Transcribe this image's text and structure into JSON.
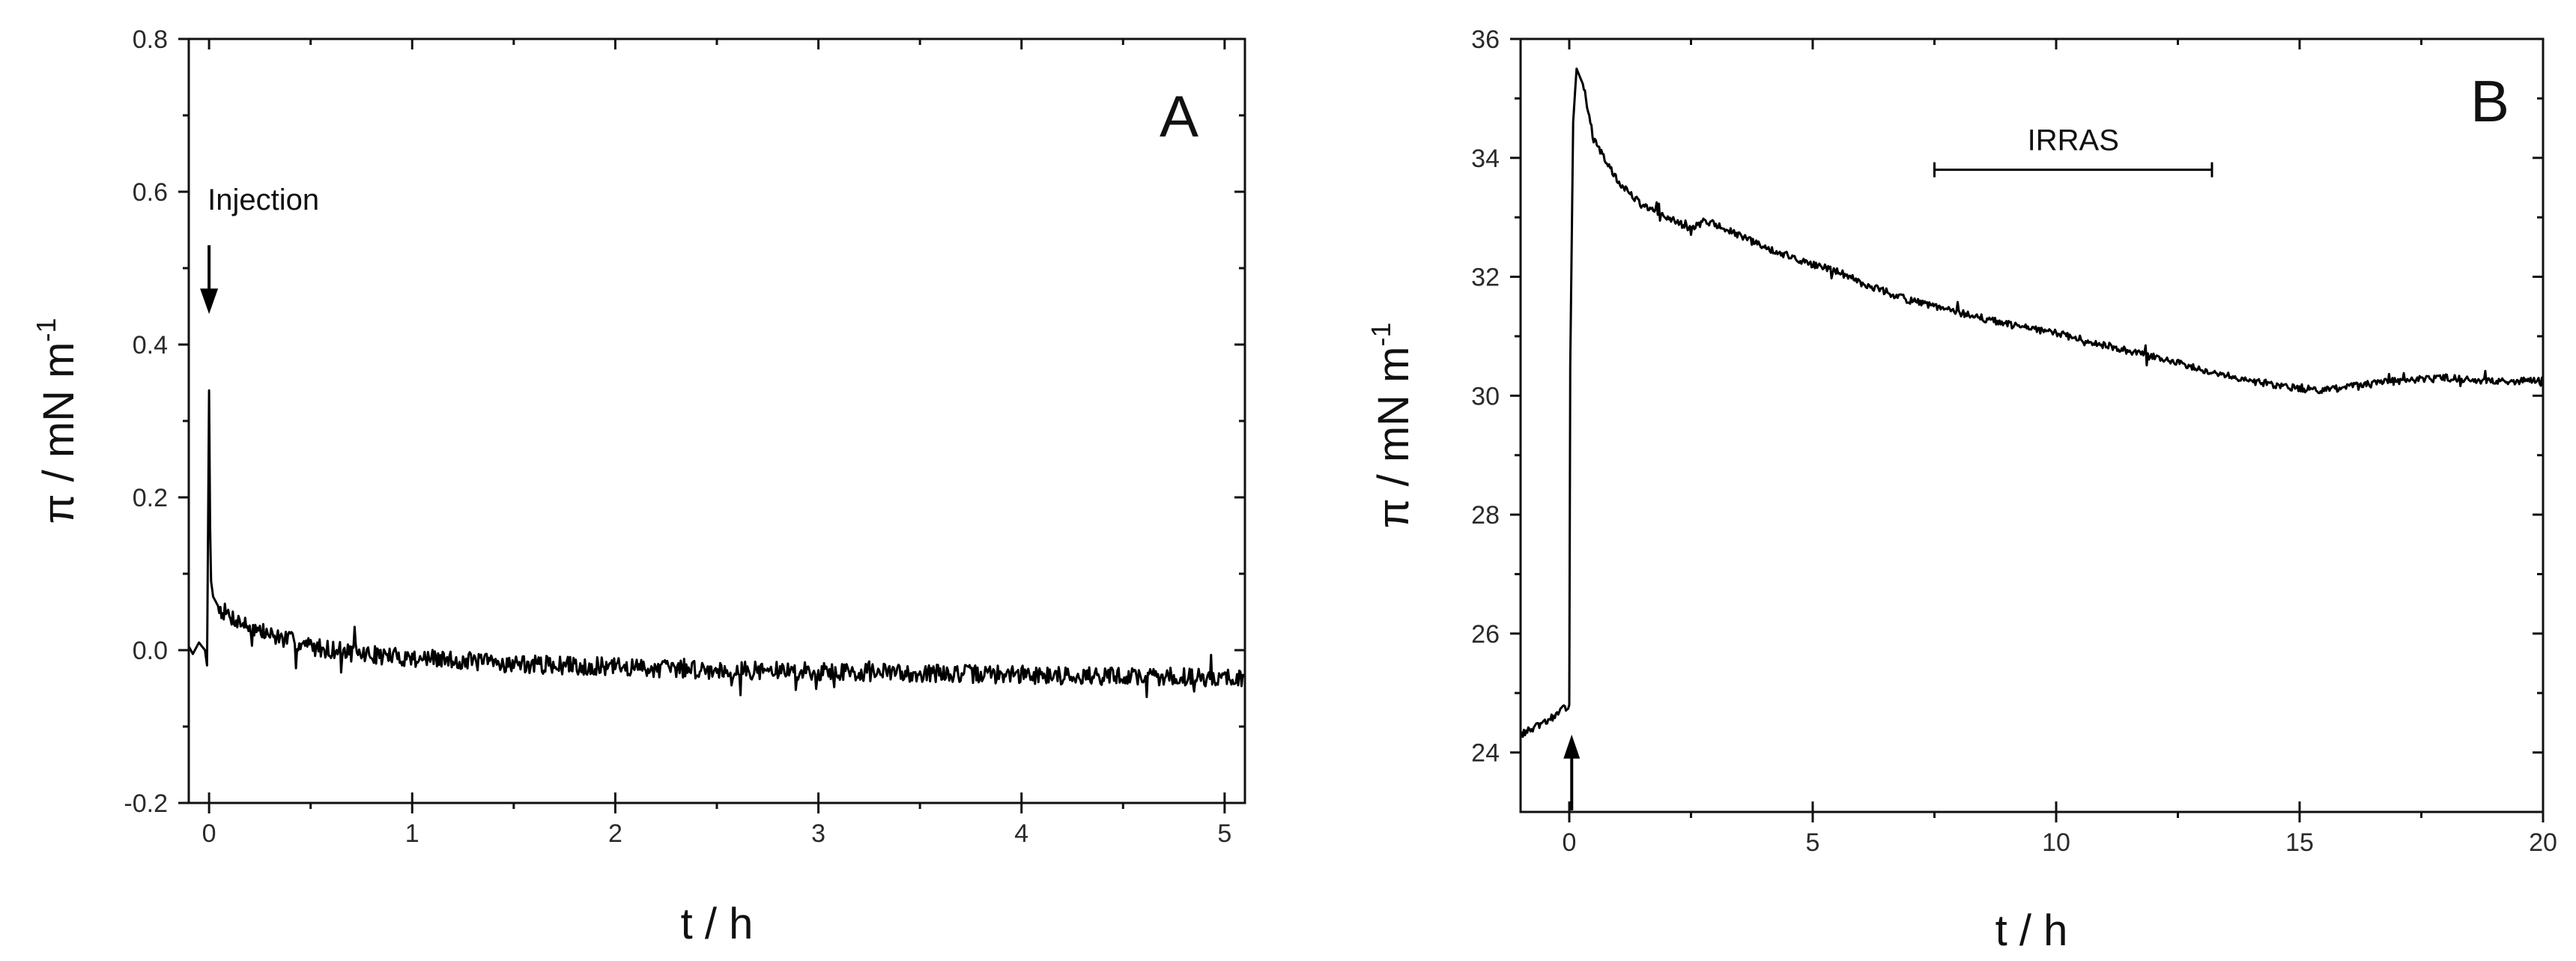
{
  "chart_data": [
    {
      "type": "line",
      "panel_label": "A",
      "xlabel": "t / h",
      "ylabel": "π / mN m",
      "ylabel_superscript": "-1",
      "xlim": [
        -0.1,
        5.1
      ],
      "ylim": [
        -0.2,
        0.8
      ],
      "x_ticks": [
        0,
        1,
        2,
        3,
        4,
        5
      ],
      "x_tick_labels": [
        "0",
        "1",
        "2",
        "3",
        "4",
        "5"
      ],
      "y_ticks": [
        -0.2,
        0.0,
        0.2,
        0.4,
        0.6,
        0.8
      ],
      "y_tick_labels": [
        "-0.2",
        "0.0",
        "0.2",
        "0.4",
        "0.6",
        "0.8"
      ],
      "grid": false,
      "color": "#000000",
      "annotations": [
        {
          "text": "Injection",
          "x": 0.0,
          "y": 0.59,
          "arrow_from_y": 0.53,
          "arrow_to_y": 0.44
        }
      ],
      "series": [
        {
          "x": [
            -0.1,
            -0.08,
            -0.05,
            -0.02,
            -0.01,
            0.0,
            0.005,
            0.01,
            0.02,
            0.05,
            0.1,
            0.2,
            0.3,
            0.5,
            0.75,
            1.0,
            1.5,
            2.0,
            2.5,
            3.0,
            3.5,
            4.0,
            4.5,
            5.0,
            5.1
          ],
          "y": [
            0.005,
            -0.005,
            0.01,
            0.0,
            -0.02,
            0.34,
            0.16,
            0.09,
            0.07,
            0.055,
            0.045,
            0.03,
            0.02,
            0.005,
            -0.005,
            -0.01,
            -0.018,
            -0.022,
            -0.026,
            -0.028,
            -0.03,
            -0.032,
            -0.034,
            -0.036,
            -0.036
          ],
          "noise": 0.012
        }
      ]
    },
    {
      "type": "line",
      "panel_label": "B",
      "xlabel": "t / h",
      "ylabel": "π / mN m",
      "ylabel_superscript": "-1",
      "xlim": [
        -1,
        20
      ],
      "ylim": [
        23,
        36
      ],
      "x_ticks": [
        0,
        5,
        10,
        15,
        20
      ],
      "x_tick_labels": [
        "0",
        "5",
        "10",
        "15",
        "20"
      ],
      "y_ticks": [
        24,
        26,
        28,
        30,
        32,
        34,
        36
      ],
      "y_tick_labels": [
        "24",
        "26",
        "28",
        "30",
        "32",
        "34",
        "36"
      ],
      "grid": false,
      "color": "#000000",
      "annotations": [
        {
          "text": "IRRAS",
          "x_start": 7.5,
          "x_end": 13.2,
          "y": 33.8
        },
        {
          "text": "",
          "x": 0.05,
          "arrow_from_y": 23.0,
          "arrow_to_y": 24.3
        }
      ],
      "series": [
        {
          "x": [
            -1,
            -0.5,
            0.0,
            0.02,
            0.08,
            0.15,
            0.3,
            0.5,
            1.0,
            1.5,
            2.0,
            2.5,
            2.8,
            3.2,
            4.0,
            5.0,
            5.5,
            6.0,
            7.0,
            8.0,
            9.0,
            10.0,
            11.0,
            12.0,
            13.0,
            14.0,
            15.0,
            15.5,
            16.0,
            17.0,
            18.0,
            19.0,
            20.0
          ],
          "y": [
            24.3,
            24.5,
            24.8,
            30.5,
            34.6,
            35.5,
            35.2,
            34.3,
            33.6,
            33.2,
            33.0,
            32.8,
            32.95,
            32.8,
            32.5,
            32.2,
            32.1,
            31.9,
            31.6,
            31.4,
            31.2,
            31.05,
            30.85,
            30.65,
            30.45,
            30.25,
            30.12,
            30.1,
            30.15,
            30.25,
            30.3,
            30.25,
            30.25
          ],
          "noise": 0.06
        }
      ]
    }
  ]
}
